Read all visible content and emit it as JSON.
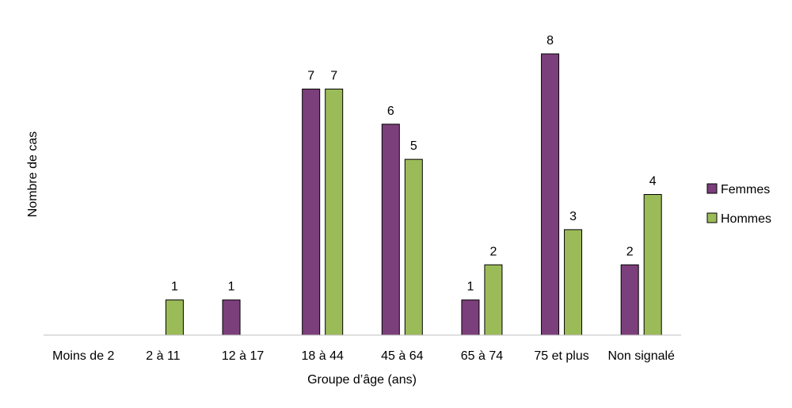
{
  "chart_data": {
    "type": "bar",
    "title": "",
    "xlabel": "Groupe d’âge (ans)",
    "ylabel": "Nombre de cas",
    "ylim": [
      0,
      8
    ],
    "grid": false,
    "legend_position": "right",
    "categories": [
      "Moins de 2",
      "2 à 11",
      "12 à 17",
      "18 à 44",
      "45 à 64",
      "65 à 74",
      "75 et plus",
      "Non signalé"
    ],
    "series": [
      {
        "name": "Femmes",
        "color": "#7b3f7b",
        "values": [
          0,
          0,
          1,
          7,
          6,
          1,
          8,
          2
        ]
      },
      {
        "name": "Hommes",
        "color": "#9bbb59",
        "values": [
          0,
          1,
          0,
          7,
          5,
          2,
          3,
          4
        ]
      }
    ]
  }
}
